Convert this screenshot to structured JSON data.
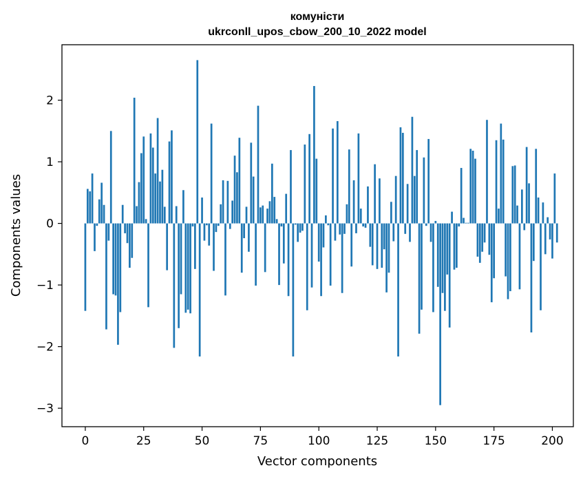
{
  "chart_data": {
    "type": "bar",
    "title": "комуністи",
    "subtitle": "ukrconll_upos_cbow_200_10_2022 model",
    "xlabel": "Vector components",
    "ylabel": "Components values",
    "xlim": [
      -10,
      209
    ],
    "ylim": [
      -3.3,
      2.9
    ],
    "xticks": [
      0,
      25,
      50,
      75,
      100,
      125,
      150,
      175,
      200
    ],
    "yticks": [
      -3,
      -2,
      -1,
      0,
      1,
      2
    ],
    "bar_color": "#1f77b4",
    "grid": false,
    "legend": "none",
    "values": [
      -1.42,
      0.56,
      0.52,
      0.81,
      -0.45,
      -0.04,
      0.39,
      0.66,
      0.3,
      -1.72,
      -0.28,
      1.5,
      -1.15,
      -1.17,
      -1.97,
      -1.44,
      0.3,
      -0.16,
      -0.32,
      -0.72,
      -0.56,
      2.04,
      0.28,
      0.67,
      1.14,
      1.41,
      0.07,
      -1.36,
      1.46,
      1.23,
      0.81,
      1.71,
      0.68,
      0.87,
      0.27,
      -0.76,
      1.33,
      1.51,
      -2.02,
      0.28,
      -1.7,
      -1.15,
      0.54,
      -1.45,
      -1.4,
      -1.46,
      -0.05,
      -0.74,
      2.65,
      -2.16,
      0.42,
      -0.28,
      -0.03,
      -0.36,
      1.62,
      -0.77,
      -0.14,
      -0.04,
      0.31,
      0.7,
      -1.17,
      0.69,
      -0.09,
      0.37,
      1.1,
      0.83,
      1.39,
      -0.8,
      -0.24,
      0.27,
      -0.46,
      1.31,
      0.76,
      -1.01,
      1.91,
      0.26,
      0.29,
      -0.79,
      0.24,
      0.36,
      0.97,
      0.43,
      0.07,
      -1.0,
      -0.05,
      -0.65,
      0.48,
      -1.18,
      1.19,
      -2.16,
      -0.02,
      -0.3,
      -0.15,
      -0.12,
      1.28,
      -1.41,
      1.45,
      -1.04,
      2.23,
      1.05,
      -0.62,
      -1.18,
      -0.39,
      0.13,
      -0.03,
      -1.01,
      1.54,
      -0.28,
      1.66,
      -0.18,
      -1.13,
      -0.17,
      0.31,
      1.2,
      -0.7,
      0.7,
      -0.16,
      1.46,
      0.24,
      -0.05,
      -0.07,
      0.6,
      -0.38,
      -0.68,
      0.96,
      -0.74,
      0.73,
      -0.72,
      -0.42,
      -1.12,
      -0.8,
      0.35,
      -0.29,
      0.77,
      -2.16,
      1.56,
      1.47,
      -0.17,
      0.64,
      -0.3,
      1.73,
      0.77,
      1.19,
      -1.79,
      -1.4,
      1.07,
      -0.04,
      1.37,
      -0.3,
      -1.44,
      0.04,
      -1.03,
      -2.95,
      -1.13,
      -1.42,
      -0.83,
      -1.69,
      0.19,
      -0.75,
      -0.72,
      -0.05,
      0.9,
      0.09,
      0.01,
      0.01,
      1.21,
      1.18,
      1.05,
      -0.54,
      -0.64,
      -0.46,
      -0.31,
      1.68,
      -0.51,
      -1.28,
      -0.89,
      1.35,
      0.24,
      1.62,
      1.36,
      -0.86,
      -1.23,
      -1.1,
      0.93,
      0.94,
      0.29,
      -1.07,
      0.55,
      -0.11,
      1.24,
      0.65,
      -1.77,
      -0.61,
      1.21,
      0.42,
      -1.41,
      0.34,
      -0.5,
      0.1,
      -0.26,
      -0.57,
      0.81,
      -0.31
    ]
  }
}
